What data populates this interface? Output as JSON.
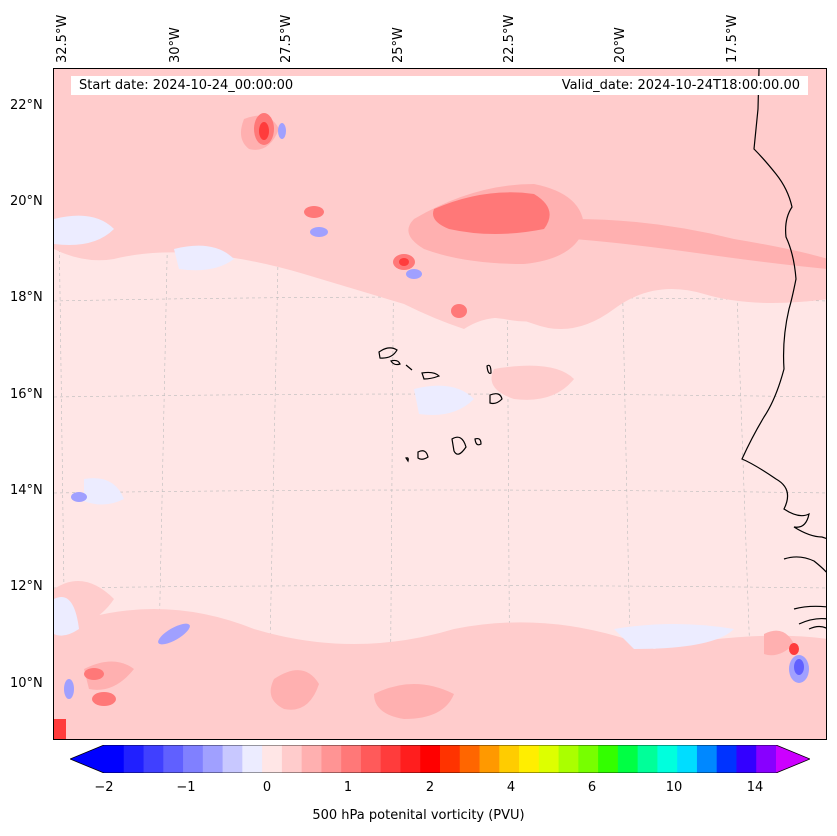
{
  "header": {
    "start_date": "Start date: 2024-10-24_00:00:00",
    "valid_date": "Valid_date: 2024-10-24T18:00:00.00"
  },
  "lon_labels": [
    "32.5°W",
    "30°W",
    "27.5°W",
    "25°W",
    "22.5°W",
    "20°W",
    "17.5°W"
  ],
  "lat_labels": [
    "22°N",
    "20°N",
    "18°N",
    "16°N",
    "14°N",
    "12°N",
    "10°N"
  ],
  "colorbar": {
    "title": "500 hPa potenital vorticity (PVU)",
    "tick_labels": [
      "−2",
      "−1",
      "0",
      "1",
      "2",
      "4",
      "6",
      "10",
      "14"
    ],
    "colors": [
      "#0000ff",
      "#2020ff",
      "#4040ff",
      "#6060ff",
      "#8080ff",
      "#a0a0ff",
      "#c8c8ff",
      "#ececff",
      "#ffe6e6",
      "#ffcccc",
      "#ffb0b0",
      "#ff9494",
      "#ff7878",
      "#ff5a5a",
      "#ff3c3c",
      "#ff1e1e",
      "#ff0000",
      "#ff3300",
      "#ff6600",
      "#ff9900",
      "#ffcc00",
      "#ffee00",
      "#ddff00",
      "#aaff00",
      "#77ff00",
      "#33ff00",
      "#00ff44",
      "#00ff99",
      "#00ffdd",
      "#00ddff",
      "#0088ff",
      "#0033ff",
      "#3300ff",
      "#8800ff"
    ],
    "extend_colors": {
      "min": "#0000ff",
      "max": "#cc00ff"
    }
  },
  "map_colors": {
    "background": "#ffe6e6",
    "light_pink": "#ffcccc",
    "mid_pink": "#ffb0b0",
    "red": "#ff7878",
    "dark_red": "#ff3c3c",
    "light_blue": "#ececff",
    "blue": "#a0a0ff",
    "coast": "#000000"
  }
}
